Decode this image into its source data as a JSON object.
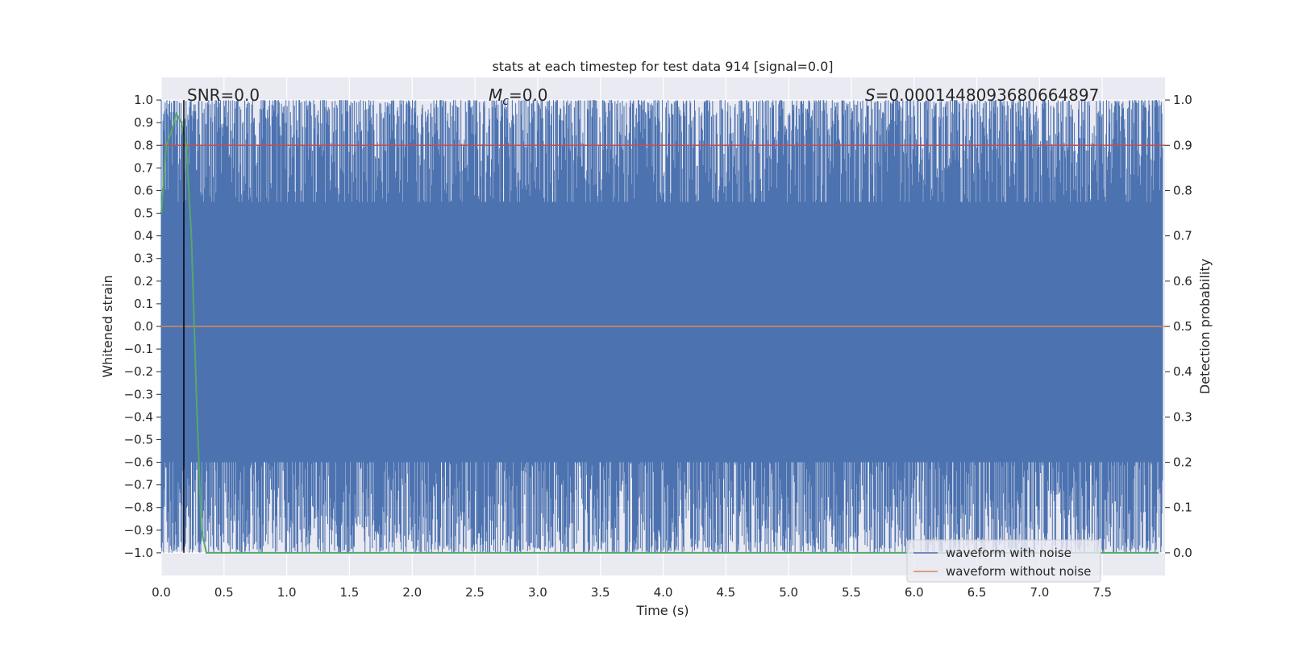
{
  "chart_data": {
    "type": "line",
    "title": "stats at each timestep for test data 914 [signal=0.0]",
    "xlabel": "Time (s)",
    "ylabel": "Whitened strain",
    "y2label": "Detection probability",
    "xlim": [
      0.0,
      8.0
    ],
    "ylim": [
      -1.1,
      1.1
    ],
    "y2lim": [
      -0.05,
      1.05
    ],
    "xticks": [
      "0.0",
      "0.5",
      "1.0",
      "1.5",
      "2.0",
      "2.5",
      "3.0",
      "3.5",
      "4.0",
      "4.5",
      "5.0",
      "5.5",
      "6.0",
      "6.5",
      "7.0",
      "7.5"
    ],
    "yticks": [
      "1.0",
      "0.9",
      "0.8",
      "0.7",
      "0.6",
      "0.5",
      "0.4",
      "0.3",
      "0.2",
      "0.1",
      "0.0",
      "−0.1",
      "−0.2",
      "−0.3",
      "−0.4",
      "−0.5",
      "−0.6",
      "−0.7",
      "−0.8",
      "−0.9",
      "−1.0"
    ],
    "y2ticks": [
      "1.0",
      "0.9",
      "0.8",
      "0.7",
      "0.6",
      "0.5",
      "0.4",
      "0.3",
      "0.2",
      "0.1",
      "0.0"
    ],
    "grid": true,
    "legend_position": "lower-right",
    "annotations": {
      "snr": "SNR=0.0",
      "mc_symbol": "M",
      "mc_subscript": "c",
      "mc_value": "=0.0",
      "s_symbol": "S",
      "s_value": "=0.0001448093680664897"
    },
    "marker_line_x": 0.18,
    "threshold_y2": 0.9,
    "series": [
      {
        "name": "waveform with noise",
        "color": "#4c72b0",
        "range": [
          -1.0,
          1.0
        ],
        "note_values": "dense noise clipped between -1 and 1 over 0-8 s"
      },
      {
        "name": "waveform without noise",
        "color": "#dd8452",
        "x": [
          0.0,
          8.0
        ],
        "values": [
          0.0,
          0.0
        ]
      },
      {
        "axis": "right",
        "color": "#55a868",
        "x": [
          0.0,
          0.04,
          0.08,
          0.12,
          0.16,
          0.2,
          0.24,
          0.28,
          0.32,
          0.36,
          0.4,
          1.0,
          2.0,
          3.0,
          4.0,
          5.0,
          6.0,
          7.0,
          7.95
        ],
        "values": [
          0.75,
          0.9,
          0.93,
          0.97,
          0.95,
          0.9,
          0.7,
          0.35,
          0.05,
          0.0,
          0.0,
          0.0,
          0.0,
          0.0,
          0.0,
          0.0,
          0.0,
          0.0,
          0.0
        ]
      }
    ],
    "colors": {
      "background": "#eaeaf2",
      "grid": "#ffffff",
      "threshold": "#c44e52",
      "marker_line": "#000000"
    }
  }
}
